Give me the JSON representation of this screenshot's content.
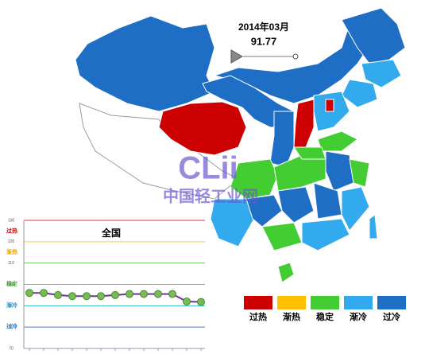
{
  "header": {
    "date": "2014年03月",
    "value": "91.77"
  },
  "watermark": {
    "logo": "CLii",
    "text": "中国轻工业网"
  },
  "legend": [
    {
      "label": "过热",
      "color": "#cc0000"
    },
    {
      "label": "渐热",
      "color": "#ffc000"
    },
    {
      "label": "稳定",
      "color": "#44cc33"
    },
    {
      "label": "渐冷",
      "color": "#33aaee"
    },
    {
      "label": "过冷",
      "color": "#1f6ec6"
    }
  ],
  "chart_data": {
    "type": "line",
    "title": "全国",
    "categories": [
      null,
      null,
      null,
      null,
      null,
      null,
      null,
      null,
      null,
      null,
      null,
      null,
      null
    ],
    "series": [
      {
        "name": "全国",
        "color": "#7030a0",
        "values": [
          96,
          96,
          95,
          94.5,
          94.5,
          94.5,
          95,
          95.5,
          95.5,
          95.5,
          95.5,
          92,
          91.77
        ]
      }
    ],
    "ylim": [
      70,
      130
    ],
    "yticks": [
      70,
      80,
      90,
      100,
      110,
      120,
      130
    ],
    "grid_colors": [
      "#9999bb",
      "#4477cc",
      "#33bbcc",
      "#66cc55",
      "#66cc55",
      "#ffcc33",
      "#dd3333"
    ],
    "band_labels": [
      "过热",
      "渐热",
      "稳定",
      "渐冷",
      "过冷"
    ],
    "grid": true
  }
}
